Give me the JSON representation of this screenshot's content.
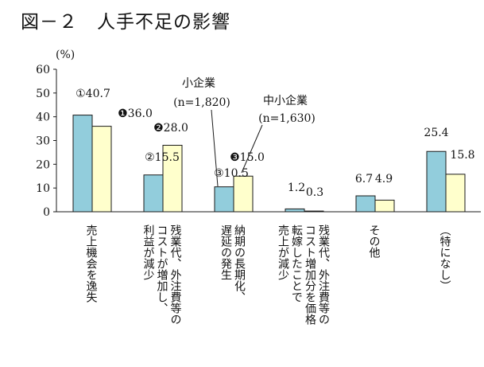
{
  "title": "図－２　人手不足の影響",
  "colors": {
    "small": "#92cddc",
    "smb": "#ffffcc",
    "stroke": "#1a1a1a"
  },
  "chart_data": {
    "type": "bar",
    "title": "図－２　人手不足の影響",
    "ylabel": "(%)",
    "ylim": [
      0,
      60
    ],
    "yticks": [
      0,
      10,
      20,
      30,
      40,
      50,
      60
    ],
    "grid": false,
    "categories": [
      "売上機会を逸失",
      "残業代、外注費等の\nコストが増加し、\n利益が減少",
      "納期の長期化、\n遅延の発生",
      "残業代、外注費等の\nコスト増加分を価格\n転嫁したことで\n売上が減少",
      "その他",
      "（特になし）"
    ],
    "series": [
      {
        "name": "小企業 (n=1,820)",
        "legend": "小企業",
        "n": "(n=1,820)",
        "values": [
          40.7,
          15.5,
          10.5,
          1.2,
          6.7,
          25.4
        ],
        "labels": [
          "①40.7",
          "②15.5",
          "③10.5",
          "1.2",
          "6.7",
          "25.4"
        ]
      },
      {
        "name": "中小企業 (n=1,630)",
        "legend": "中小企業",
        "n": "(n=1,630)",
        "values": [
          36.0,
          28.0,
          15.0,
          0.3,
          4.9,
          15.8
        ],
        "labels": [
          "❶36.0",
          "❷28.0",
          "❸15.0",
          "0.3",
          "4.9",
          "15.8"
        ]
      }
    ]
  }
}
